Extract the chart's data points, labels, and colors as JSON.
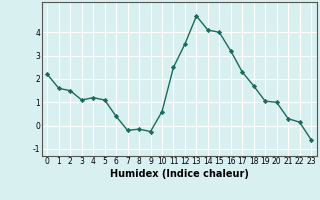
{
  "x": [
    0,
    1,
    2,
    3,
    4,
    5,
    6,
    7,
    8,
    9,
    10,
    11,
    12,
    13,
    14,
    15,
    16,
    17,
    18,
    19,
    20,
    21,
    22,
    23
  ],
  "y": [
    2.2,
    1.6,
    1.5,
    1.1,
    1.2,
    1.1,
    0.4,
    -0.2,
    -0.15,
    -0.25,
    0.6,
    2.5,
    3.5,
    4.7,
    4.1,
    4.0,
    3.2,
    2.3,
    1.7,
    1.05,
    1.0,
    0.3,
    0.15,
    -0.6
  ],
  "title": "",
  "xlabel": "Humidex (Indice chaleur)",
  "ylabel": "",
  "xlim": [
    -0.5,
    23.5
  ],
  "ylim": [
    -1.3,
    5.3
  ],
  "yticks": [
    -1,
    0,
    1,
    2,
    3,
    4
  ],
  "xticks": [
    0,
    1,
    2,
    3,
    4,
    5,
    6,
    7,
    8,
    9,
    10,
    11,
    12,
    13,
    14,
    15,
    16,
    17,
    18,
    19,
    20,
    21,
    22,
    23
  ],
  "line_color": "#1a6b5a",
  "marker": "D",
  "marker_size": 2.2,
  "bg_color": "#d9f0f0",
  "grid_color": "#ffffff",
  "axes_color": "#555555",
  "label_fontsize": 7,
  "tick_fontsize": 5.5,
  "linewidth": 1.0
}
